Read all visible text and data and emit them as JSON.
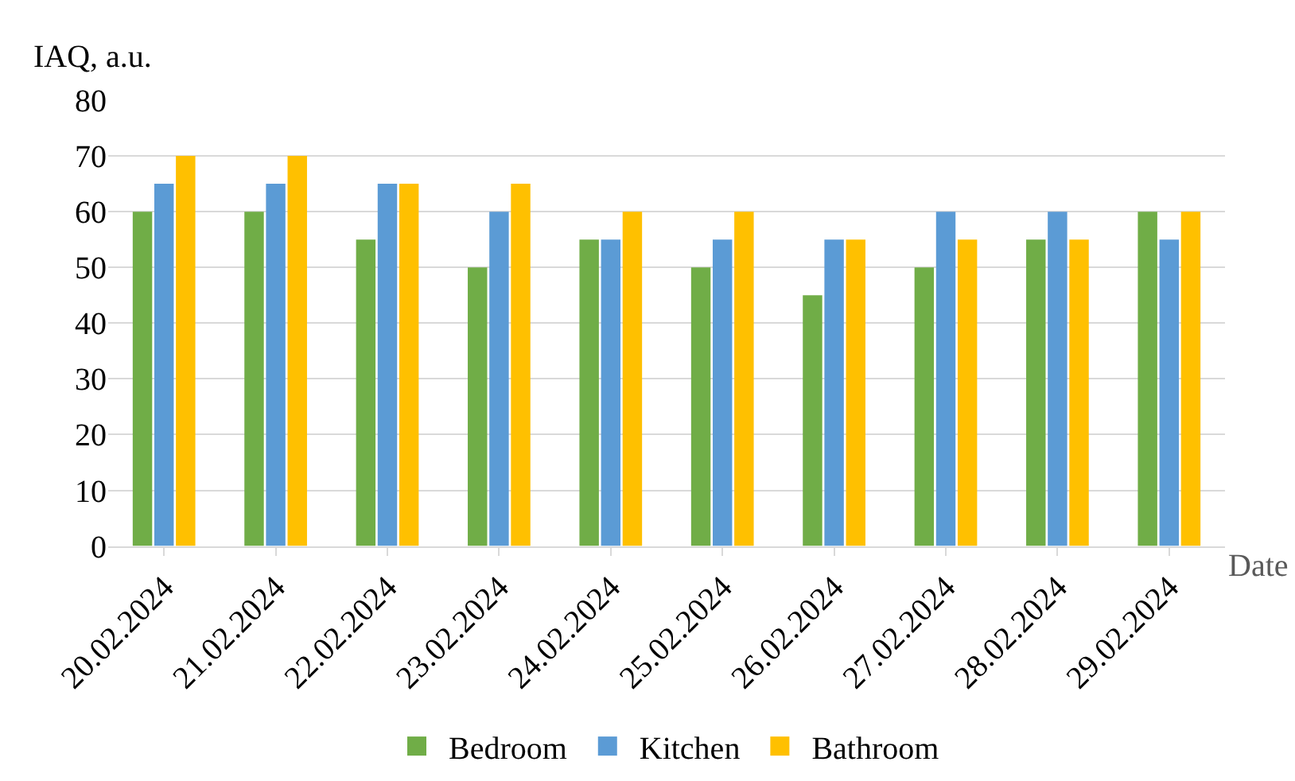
{
  "chart_data": {
    "type": "bar",
    "ylabel": "IAQ, a.u.",
    "xlabel": "Date",
    "categories": [
      "20.02.2024",
      "21.02.2024",
      "22.02.2024",
      "23.02.2024",
      "24.02.2024",
      "25.02.2024",
      "26.02.2024",
      "27.02.2024",
      "28.02.2024",
      "29.02.2024"
    ],
    "series": [
      {
        "name": "Bedroom",
        "color": "#70ad47",
        "values": [
          60,
          60,
          55,
          50,
          55,
          50,
          45,
          50,
          55,
          60
        ]
      },
      {
        "name": "Kitchen",
        "color": "#5b9bd5",
        "values": [
          65,
          65,
          65,
          60,
          55,
          55,
          55,
          60,
          60,
          55
        ]
      },
      {
        "name": "Bathroom",
        "color": "#ffc000",
        "values": [
          70,
          70,
          65,
          65,
          60,
          60,
          55,
          55,
          55,
          60
        ]
      }
    ],
    "ylim": [
      0,
      80
    ],
    "yticks": [
      0,
      10,
      20,
      30,
      40,
      50,
      60,
      70,
      80
    ],
    "grid": "y",
    "legend": "bottom"
  }
}
